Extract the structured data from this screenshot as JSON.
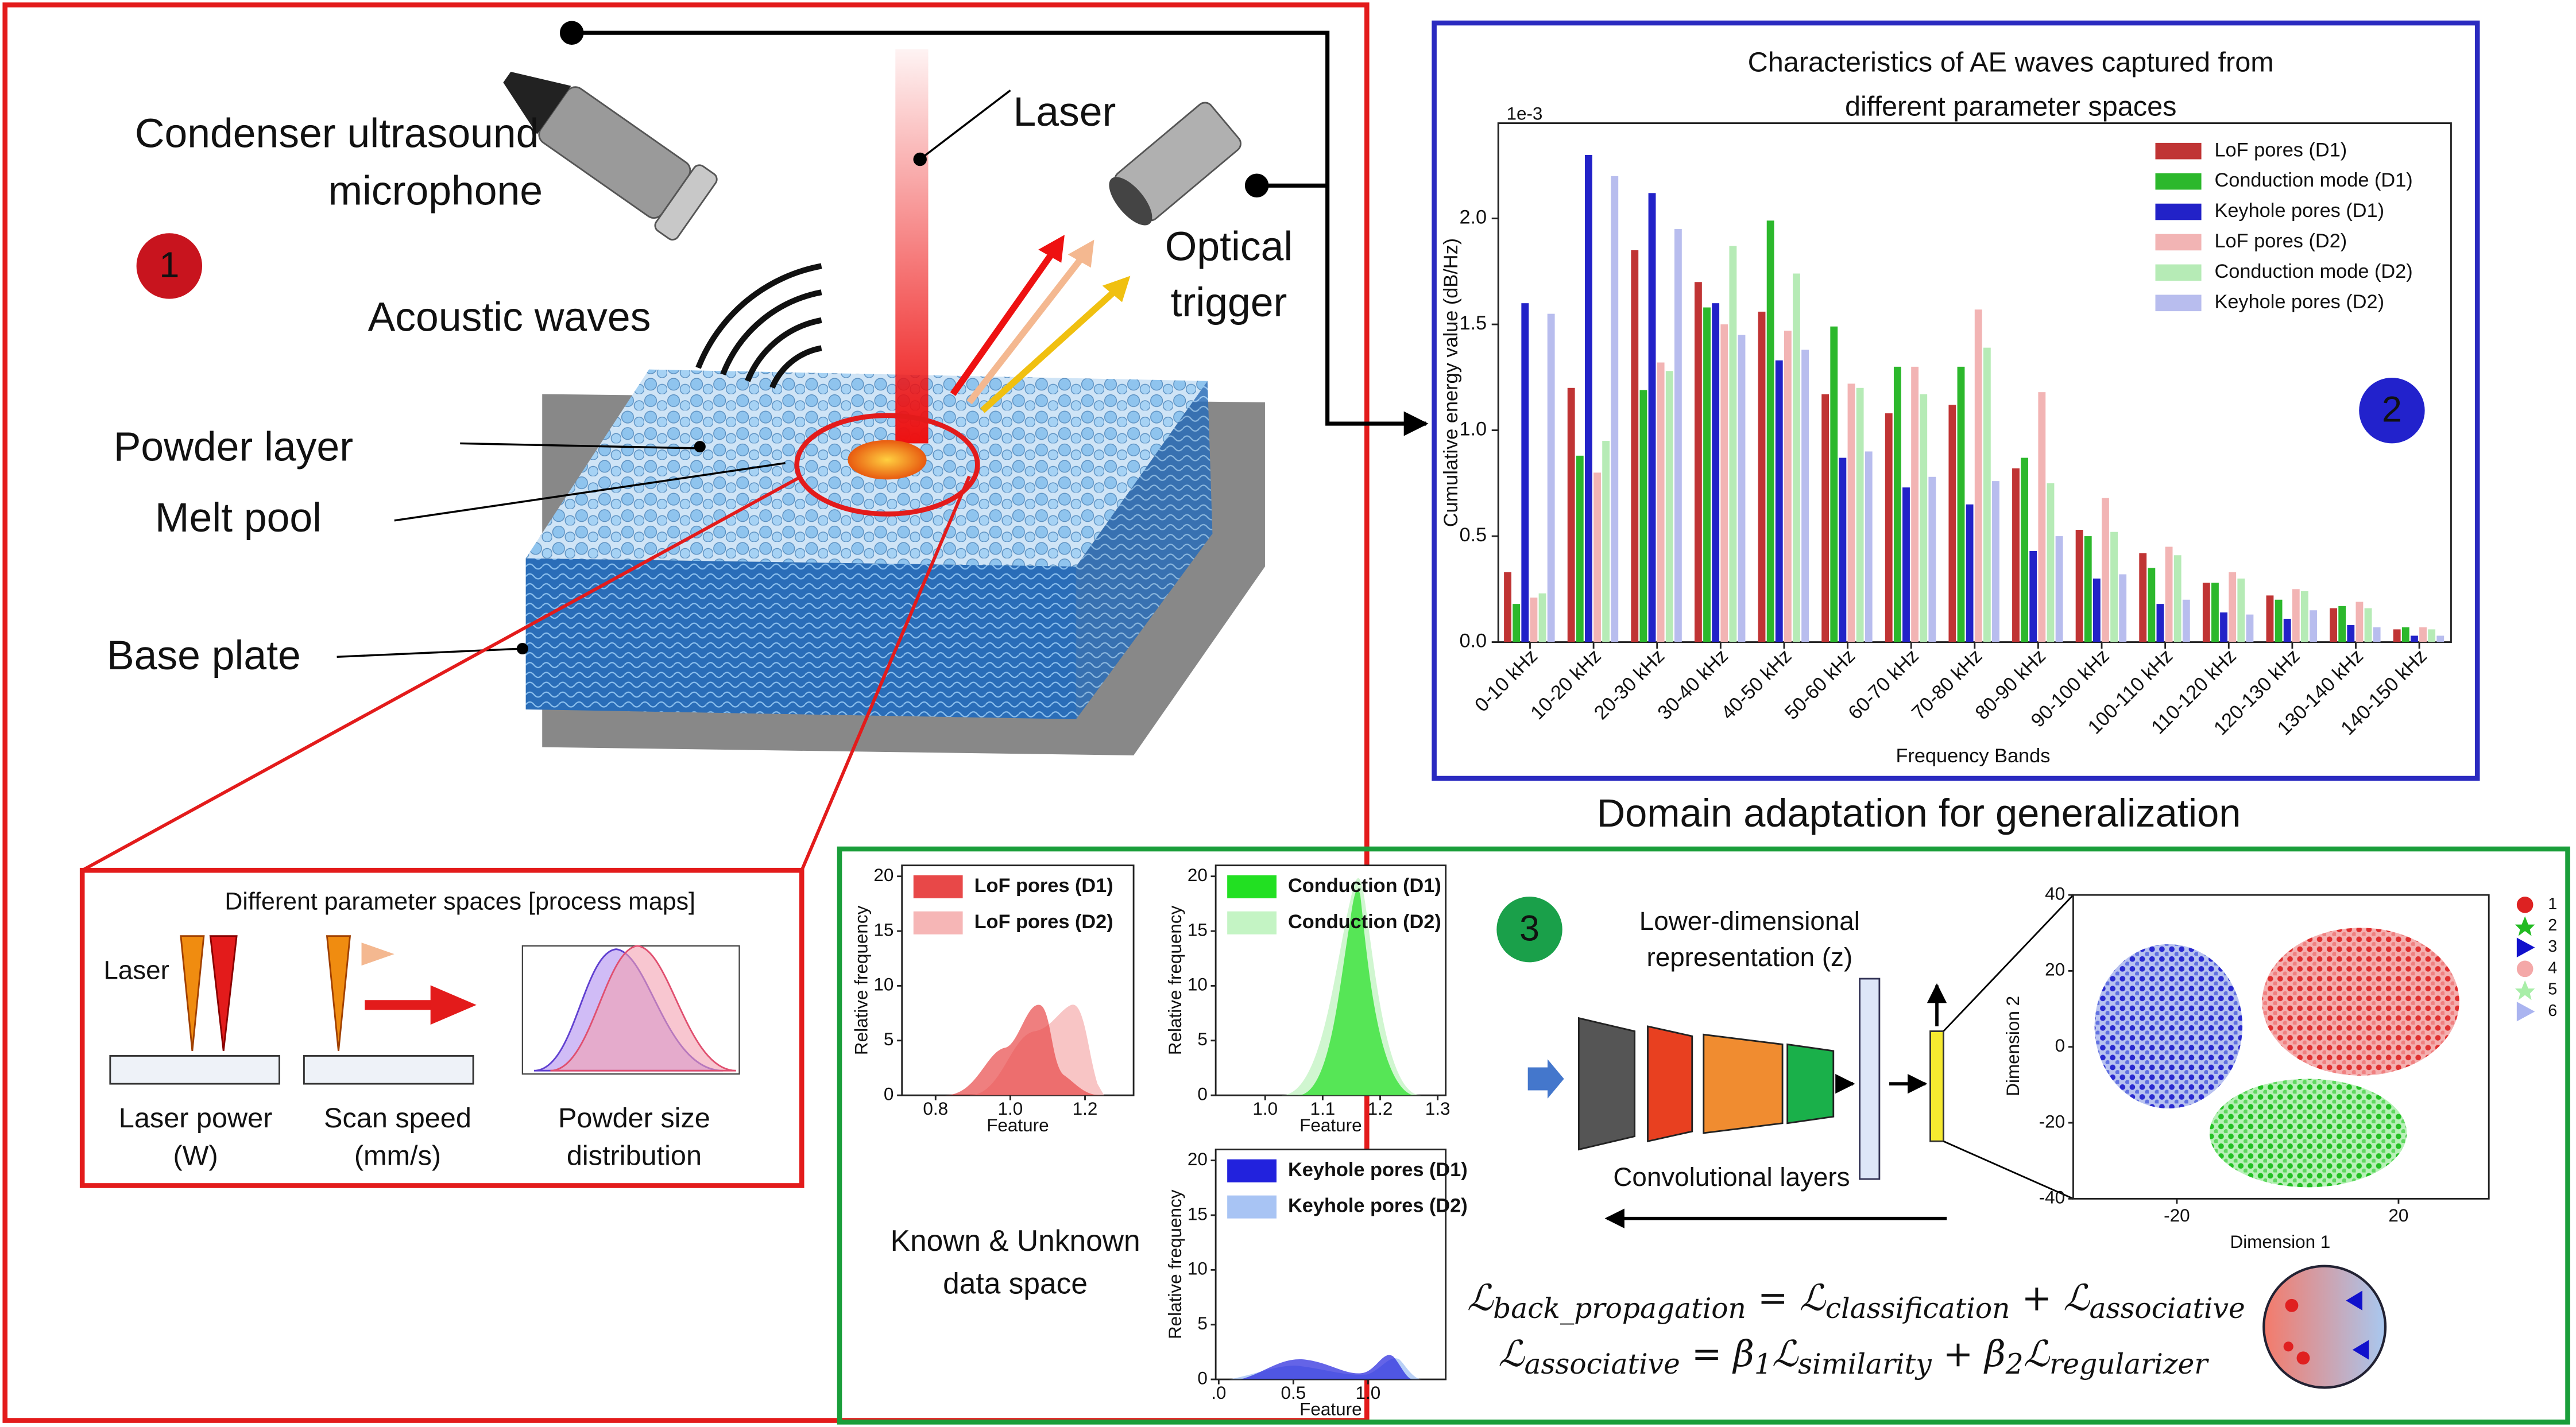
{
  "panel1": {
    "number": "1",
    "microphone": [
      "Condenser ultrasound",
      "microphone"
    ],
    "laser": "Laser",
    "trigger": [
      "Optical",
      "trigger"
    ],
    "acoustic_waves": "Acoustic waves",
    "powder_layer": "Powder layer",
    "melt_pool": "Melt pool",
    "base_plate": "Base plate",
    "inset": {
      "title": "Different parameter spaces [process maps]",
      "laser": "Laser",
      "captions": [
        [
          "Laser power",
          "(W)"
        ],
        [
          "Scan speed",
          "(mm/s)"
        ],
        [
          "Powder size",
          "distribution"
        ]
      ]
    }
  },
  "chart_data": {
    "type": "bar",
    "title": [
      "Characteristics of AE waves captured from",
      "different parameter spaces"
    ],
    "number": "2",
    "y_offset_label": "1e-3",
    "ylabel": "Cumulative energy value (dB/Hz)",
    "xlabel": "Frequency Bands",
    "categories": [
      "0-10 kHz",
      "10-20 kHz",
      "20-30 kHz",
      "30-40 kHz",
      "40-50 kHz",
      "50-60 kHz",
      "60-70 kHz",
      "70-80 kHz",
      "80-90 kHz",
      "90-100 kHz",
      "100-110 kHz",
      "110-120 kHz",
      "120-130 kHz",
      "130-140 kHz",
      "140-150 kHz"
    ],
    "series": [
      {
        "name": "LoF pores (D1)",
        "color": "#c03434",
        "values": [
          0.33,
          1.2,
          1.85,
          1.7,
          1.56,
          1.17,
          1.08,
          1.12,
          0.82,
          0.53,
          0.42,
          0.28,
          0.22,
          0.16,
          0.06
        ]
      },
      {
        "name": "Conduction mode (D1)",
        "color": "#2cb82c",
        "values": [
          0.18,
          0.88,
          1.19,
          1.58,
          1.99,
          1.49,
          1.3,
          1.3,
          0.87,
          0.5,
          0.35,
          0.28,
          0.2,
          0.17,
          0.07
        ]
      },
      {
        "name": "Keyhole pores (D1)",
        "color": "#2222c8",
        "values": [
          1.6,
          2.3,
          2.12,
          1.6,
          1.33,
          0.87,
          0.73,
          0.65,
          0.43,
          0.3,
          0.18,
          0.14,
          0.11,
          0.08,
          0.03
        ]
      },
      {
        "name": "LoF pores (D2)",
        "color": "#f2b4b4",
        "values": [
          0.21,
          0.8,
          1.32,
          1.5,
          1.47,
          1.22,
          1.3,
          1.57,
          1.18,
          0.68,
          0.45,
          0.33,
          0.25,
          0.19,
          0.07
        ]
      },
      {
        "name": "Conduction mode (D2)",
        "color": "#b6ebb6",
        "values": [
          0.23,
          0.95,
          1.28,
          1.87,
          1.74,
          1.2,
          1.17,
          1.39,
          0.75,
          0.52,
          0.41,
          0.3,
          0.24,
          0.16,
          0.06
        ]
      },
      {
        "name": "Keyhole pores (D2)",
        "color": "#b8bdee",
        "values": [
          1.55,
          2.2,
          1.95,
          1.45,
          1.38,
          0.9,
          0.78,
          0.76,
          0.5,
          0.32,
          0.2,
          0.13,
          0.15,
          0.07,
          0.03
        ]
      }
    ],
    "ylim": [
      0,
      2.45
    ],
    "yticks": [
      {
        "value": 0,
        "label": "0.0"
      },
      0.5,
      {
        "value": 1,
        "label": "1.0"
      },
      1.5,
      {
        "value": 2,
        "label": "2.0"
      }
    ],
    "legend": "upper right"
  },
  "heading": "Domain adaptation for generalization",
  "panel3": {
    "number": "3",
    "representation": [
      "Lower-dimensional",
      "representation (z)"
    ],
    "conv_layers": "Convolutional layers",
    "data_space": [
      "Known & Unknown",
      "data space"
    ],
    "kde_plots": [
      {
        "legend": [
          "LoF pores (D1)",
          "LoF pores (D2)"
        ],
        "colors": [
          "#e84848",
          "#f6b6b6"
        ],
        "ylabel": "Relative frequency",
        "xlabel": "Feature",
        "ylim": [
          0,
          21
        ],
        "yticks": [
          0,
          5,
          10,
          15,
          20
        ],
        "xlim": [
          0.71,
          1.33
        ],
        "xticks": [
          0.8,
          {
            "value": 1,
            "label": "1.0"
          },
          1.2
        ]
      },
      {
        "legend": [
          "Conduction (D1)",
          "Conduction (D2)"
        ],
        "colors": [
          "#22e022",
          "#c4f4c4"
        ],
        "ylabel": "Relative frequency",
        "xlabel": "Feature",
        "ylim": [
          0,
          21
        ],
        "yticks": [
          0,
          5,
          10,
          15,
          20
        ],
        "xlim": [
          0.914,
          1.314
        ],
        "xticks": [
          {
            "value": 1,
            "label": "1.0"
          },
          1.1,
          1.2,
          1.3
        ]
      },
      {
        "legend": [
          "Keyhole pores (D1)",
          "Keyhole pores (D2)"
        ],
        "colors": [
          "#2222dd",
          "#a8c4f4"
        ],
        "ylabel": "Relative frequency",
        "xlabel": "Feature",
        "ylim": [
          0,
          21
        ],
        "yticks": [
          0,
          5,
          10,
          15,
          20
        ],
        "xlim": [
          -0.02,
          1.52
        ],
        "xticks": [
          {
            "value": 0,
            "label": ".0"
          },
          0.5,
          {
            "value": 1,
            "label": "1.0"
          }
        ]
      }
    ],
    "tsne": {
      "xlabel": "Dimension 1",
      "ylabel": "Dimension 2",
      "xlim": [
        -38.7,
        36.3
      ],
      "xticks": [
        -20,
        20
      ],
      "ylim": [
        -40,
        40
      ],
      "yticks": [
        -40,
        -20,
        0,
        20,
        40
      ],
      "legend": [
        "1",
        "2",
        "3",
        "4",
        "5",
        "6"
      ],
      "colors": [
        "#dd2222",
        "#22bb22",
        "#1111cc",
        "#f4a8a8",
        "#a8eea8",
        "#aab4f0"
      ]
    },
    "equations": [
      [
        "ℒ",
        "back_propagation",
        " = ℒ",
        "classification",
        " + ℒ",
        "associative"
      ],
      [
        "ℒ",
        "associative",
        " = β",
        "1",
        "ℒ",
        "similarity",
        " + β",
        "2",
        "ℒ",
        "regularizer"
      ]
    ]
  }
}
